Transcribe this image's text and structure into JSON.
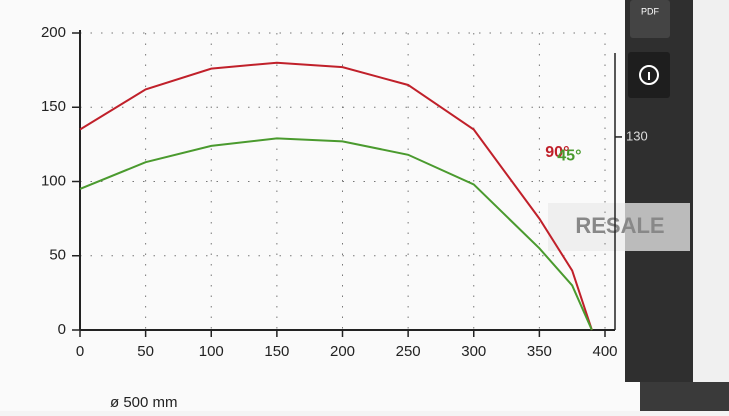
{
  "chart_data": {
    "type": "line",
    "x": [
      0,
      50,
      100,
      150,
      200,
      250,
      300,
      350,
      375,
      390
    ],
    "series": [
      {
        "name": "90°",
        "color": "#c0202a",
        "values": [
          135,
          162,
          176,
          180,
          177,
          165,
          135,
          75,
          40,
          0
        ]
      },
      {
        "name": "45°",
        "color": "#4a9a2e",
        "values": [
          95,
          113,
          124,
          129,
          127,
          118,
          98,
          55,
          30,
          0
        ]
      }
    ],
    "xlim": [
      0,
      400
    ],
    "xticks": [
      0,
      50,
      100,
      150,
      200,
      250,
      300,
      350,
      400
    ],
    "ylim": [
      0,
      200
    ],
    "yticks": [
      0,
      50,
      100,
      150,
      200
    ],
    "y2lim": [
      0,
      200
    ],
    "y2ticks": [
      130
    ],
    "grid": true
  },
  "caption": "ø 500 mm",
  "watermark": "RESALE",
  "pdf_button": "PDF"
}
